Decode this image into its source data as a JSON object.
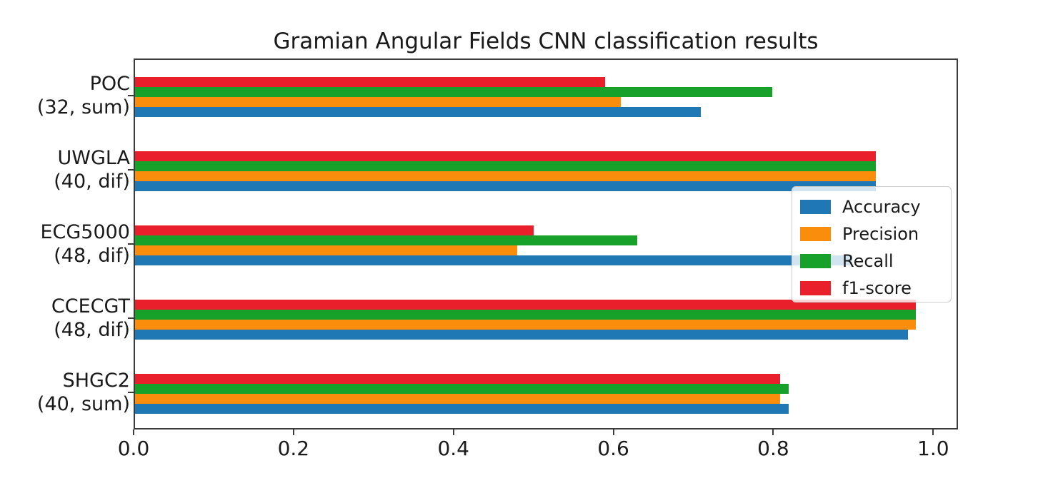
{
  "chart_data": {
    "type": "bar",
    "orientation": "horizontal",
    "title": "Gramian Angular Fields CNN classification results",
    "categories": [
      {
        "line1": "POC",
        "line2": "(32, sum)"
      },
      {
        "line1": "UWGLA",
        "line2": "(40, dif)"
      },
      {
        "line1": "ECG5000",
        "line2": "(48, dif)"
      },
      {
        "line1": "CCECGT",
        "line2": "(48, dif)"
      },
      {
        "line1": "SHGC2",
        "line2": "(40, sum)"
      }
    ],
    "series": [
      {
        "name": "Accuracy",
        "color": "#1f77b4",
        "values": [
          0.71,
          0.93,
          0.9,
          0.97,
          0.82
        ]
      },
      {
        "name": "Precision",
        "color": "#fb8d0d",
        "values": [
          0.61,
          0.93,
          0.48,
          0.98,
          0.81
        ]
      },
      {
        "name": "Recall",
        "color": "#17a12b",
        "values": [
          0.8,
          0.93,
          0.63,
          0.98,
          0.82
        ]
      },
      {
        "name": "f1-score",
        "color": "#e9202c",
        "values": [
          0.59,
          0.93,
          0.5,
          0.98,
          0.81
        ]
      }
    ],
    "bar_order_top_to_bottom": [
      "f1-score",
      "Recall",
      "Precision",
      "Accuracy"
    ],
    "xlabel": "",
    "ylabel": "",
    "xlim": [
      0,
      1.031
    ],
    "xticks": [
      0.0,
      0.2,
      0.4,
      0.6,
      0.8,
      1.0
    ],
    "xtick_labels": [
      "0.0",
      "0.2",
      "0.4",
      "0.6",
      "0.8",
      "1.0"
    ],
    "grid": false,
    "legend": {
      "position": "center-right",
      "entries": [
        "Accuracy",
        "Precision",
        "Recall",
        "f1-score"
      ]
    }
  }
}
